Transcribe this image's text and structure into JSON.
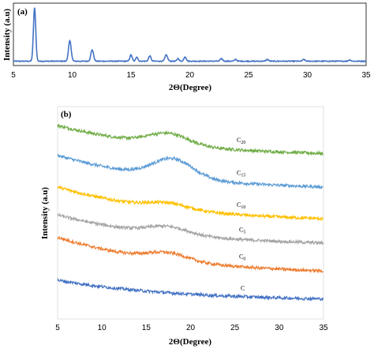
{
  "chart_data": [
    {
      "type": "line",
      "panel_label": "(a)",
      "xlabel": "2Θ(Degree)",
      "ylabel": "Intensity (a.u)",
      "xlim": [
        5,
        35
      ],
      "xticks": [
        "5",
        "10",
        "15",
        "20",
        "25",
        "30",
        "35"
      ],
      "series": [
        {
          "color": "#4472c4",
          "baseline": 4,
          "peaks": [
            {
              "x": 6.8,
              "h": 60,
              "w": 0.14
            },
            {
              "x": 9.8,
              "h": 23,
              "w": 0.16
            },
            {
              "x": 11.7,
              "h": 13,
              "w": 0.16
            },
            {
              "x": 15.0,
              "h": 7,
              "w": 0.14
            },
            {
              "x": 15.5,
              "h": 5,
              "w": 0.12
            },
            {
              "x": 16.6,
              "h": 6,
              "w": 0.14
            },
            {
              "x": 18.0,
              "h": 7,
              "w": 0.16
            },
            {
              "x": 19.0,
              "h": 3,
              "w": 0.12
            },
            {
              "x": 19.6,
              "h": 5,
              "w": 0.14
            },
            {
              "x": 22.7,
              "h": 3,
              "w": 0.14
            },
            {
              "x": 23.9,
              "h": 2,
              "w": 0.14
            },
            {
              "x": 26.6,
              "h": 2,
              "w": 0.14
            },
            {
              "x": 29.7,
              "h": 2,
              "w": 0.14
            },
            {
              "x": 33.6,
              "h": 1.5,
              "w": 0.14
            }
          ]
        }
      ]
    },
    {
      "type": "line",
      "panel_label": "(b)",
      "xlabel": "2Θ(Degree)",
      "ylabel": "Intensity (a.u)",
      "xlim": [
        5,
        35
      ],
      "xticks": [
        "5",
        "10",
        "15",
        "20",
        "25",
        "30",
        "35"
      ],
      "series": [
        {
          "name": "C20",
          "label_main": "C",
          "label_sub": "20",
          "color": "#70ad47",
          "start": 88,
          "end": 73,
          "hump": 6,
          "hump_center": 17.5
        },
        {
          "name": "C15",
          "label_main": "C",
          "label_sub": "15",
          "color": "#5b9bd5",
          "start": 72,
          "end": 55,
          "hump": 10,
          "hump_center": 18
        },
        {
          "name": "C10",
          "label_main": "C",
          "label_sub": "10",
          "color": "#ffc000",
          "start": 55,
          "end": 38,
          "hump": 3,
          "hump_center": 17.5
        },
        {
          "name": "C5",
          "label_main": "C",
          "label_sub": "5",
          "color": "#a5a5a5",
          "start": 40,
          "end": 25,
          "hump": 4,
          "hump_center": 17.5
        },
        {
          "name": "C0",
          "label_main": "C",
          "label_sub": "0",
          "color": "#ed7d31",
          "start": 28,
          "end": 10,
          "hump": 4,
          "hump_center": 17.5
        },
        {
          "name": "C",
          "label_main": "C",
          "label_sub": "",
          "color": "#4472c4",
          "start": 5,
          "end": -5,
          "hump": 0,
          "hump_center": 17.5
        }
      ]
    }
  ]
}
